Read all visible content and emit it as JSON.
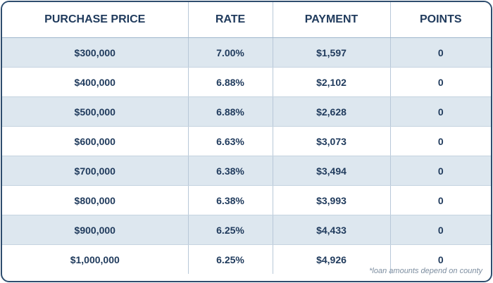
{
  "table": {
    "headers": [
      "PURCHASE PRICE",
      "RATE",
      "PAYMENT",
      "POINTS"
    ],
    "rows": [
      [
        "$300,000",
        "7.00%",
        "$1,597",
        "0"
      ],
      [
        "$400,000",
        "6.88%",
        "$2,102",
        "0"
      ],
      [
        "$500,000",
        "6.88%",
        "$2,628",
        "0"
      ],
      [
        "$600,000",
        "6.63%",
        "$3,073",
        "0"
      ],
      [
        "$700,000",
        "6.38%",
        "$3,494",
        "0"
      ],
      [
        "$800,000",
        "6.38%",
        "$3,993",
        "0"
      ],
      [
        "$900,000",
        "6.25%",
        "$4,433",
        "0"
      ],
      [
        "$1,000,000",
        "6.25%",
        "$4,926",
        "0"
      ]
    ]
  },
  "footnote": "*loan amounts depend on county",
  "colors": {
    "text": "#1f3a5c",
    "border": "#2e4d6e",
    "stripe": "#dde7ef"
  }
}
